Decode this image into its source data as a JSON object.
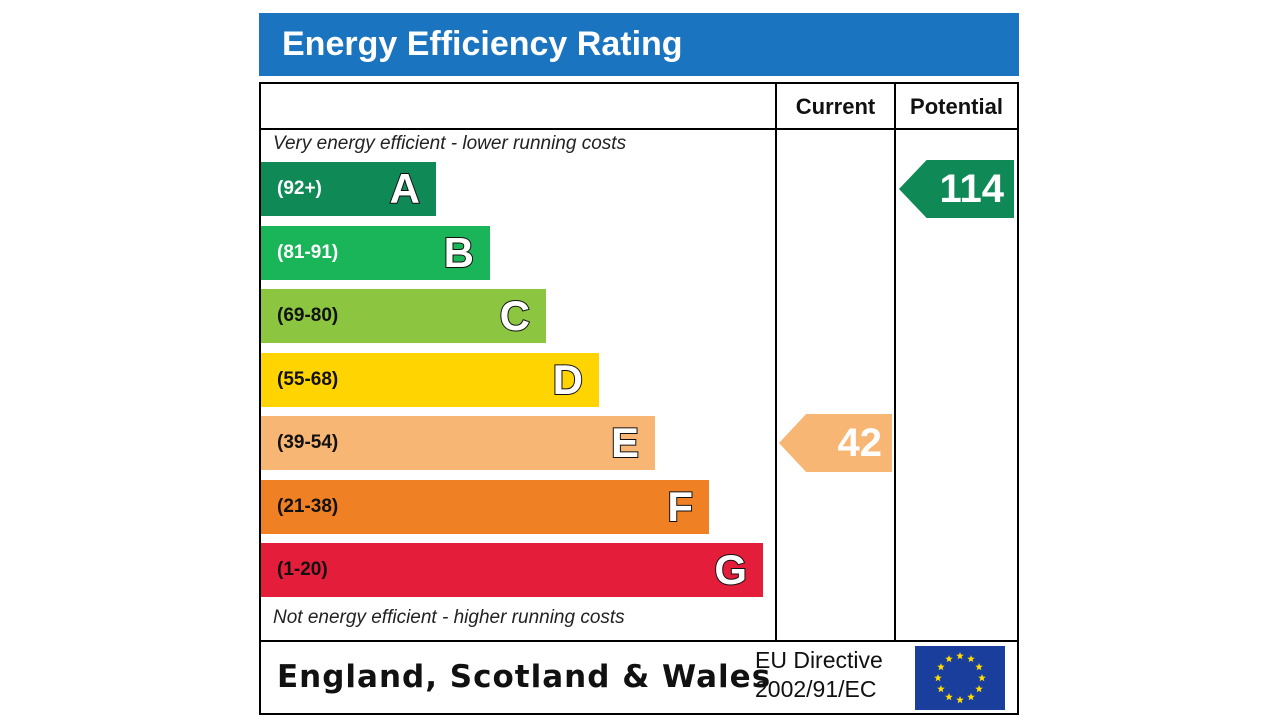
{
  "title": "Energy Efficiency Rating",
  "columns": {
    "current": "Current",
    "potential": "Potential"
  },
  "top_caption": "Very energy efficient - lower running costs",
  "bottom_caption": "Not energy efficient - higher running costs",
  "footer": {
    "country": "England, Scotland & Wales",
    "directive_line1": "EU Directive",
    "directive_line2": "2002/91/EC",
    "flag_icon": "eu-flag-icon"
  },
  "chart_data": {
    "type": "bar",
    "bands": [
      {
        "letter": "A",
        "range": "(92+)",
        "min": 92,
        "max": null,
        "color": "#0f8a56",
        "text_color": "#ffffff"
      },
      {
        "letter": "B",
        "range": "(81-91)",
        "min": 81,
        "max": 91,
        "color": "#1bb559",
        "text_color": "#ffffff"
      },
      {
        "letter": "C",
        "range": "(69-80)",
        "min": 69,
        "max": 80,
        "color": "#8cc641",
        "text_color": "#111111"
      },
      {
        "letter": "D",
        "range": "(55-68)",
        "min": 55,
        "max": 68,
        "color": "#ffd400",
        "text_color": "#111111"
      },
      {
        "letter": "E",
        "range": "(39-54)",
        "min": 39,
        "max": 54,
        "color": "#f8b674",
        "text_color": "#111111"
      },
      {
        "letter": "F",
        "range": "(21-38)",
        "min": 21,
        "max": 38,
        "color": "#f08024",
        "text_color": "#111111"
      },
      {
        "letter": "G",
        "range": "(1-20)",
        "min": 1,
        "max": 20,
        "color": "#e41d3b",
        "text_color": "#111111"
      }
    ],
    "current": {
      "value": 42,
      "band": "E",
      "color": "#f8b674"
    },
    "potential": {
      "value": 114,
      "band": "A",
      "color": "#0f8a56"
    }
  }
}
